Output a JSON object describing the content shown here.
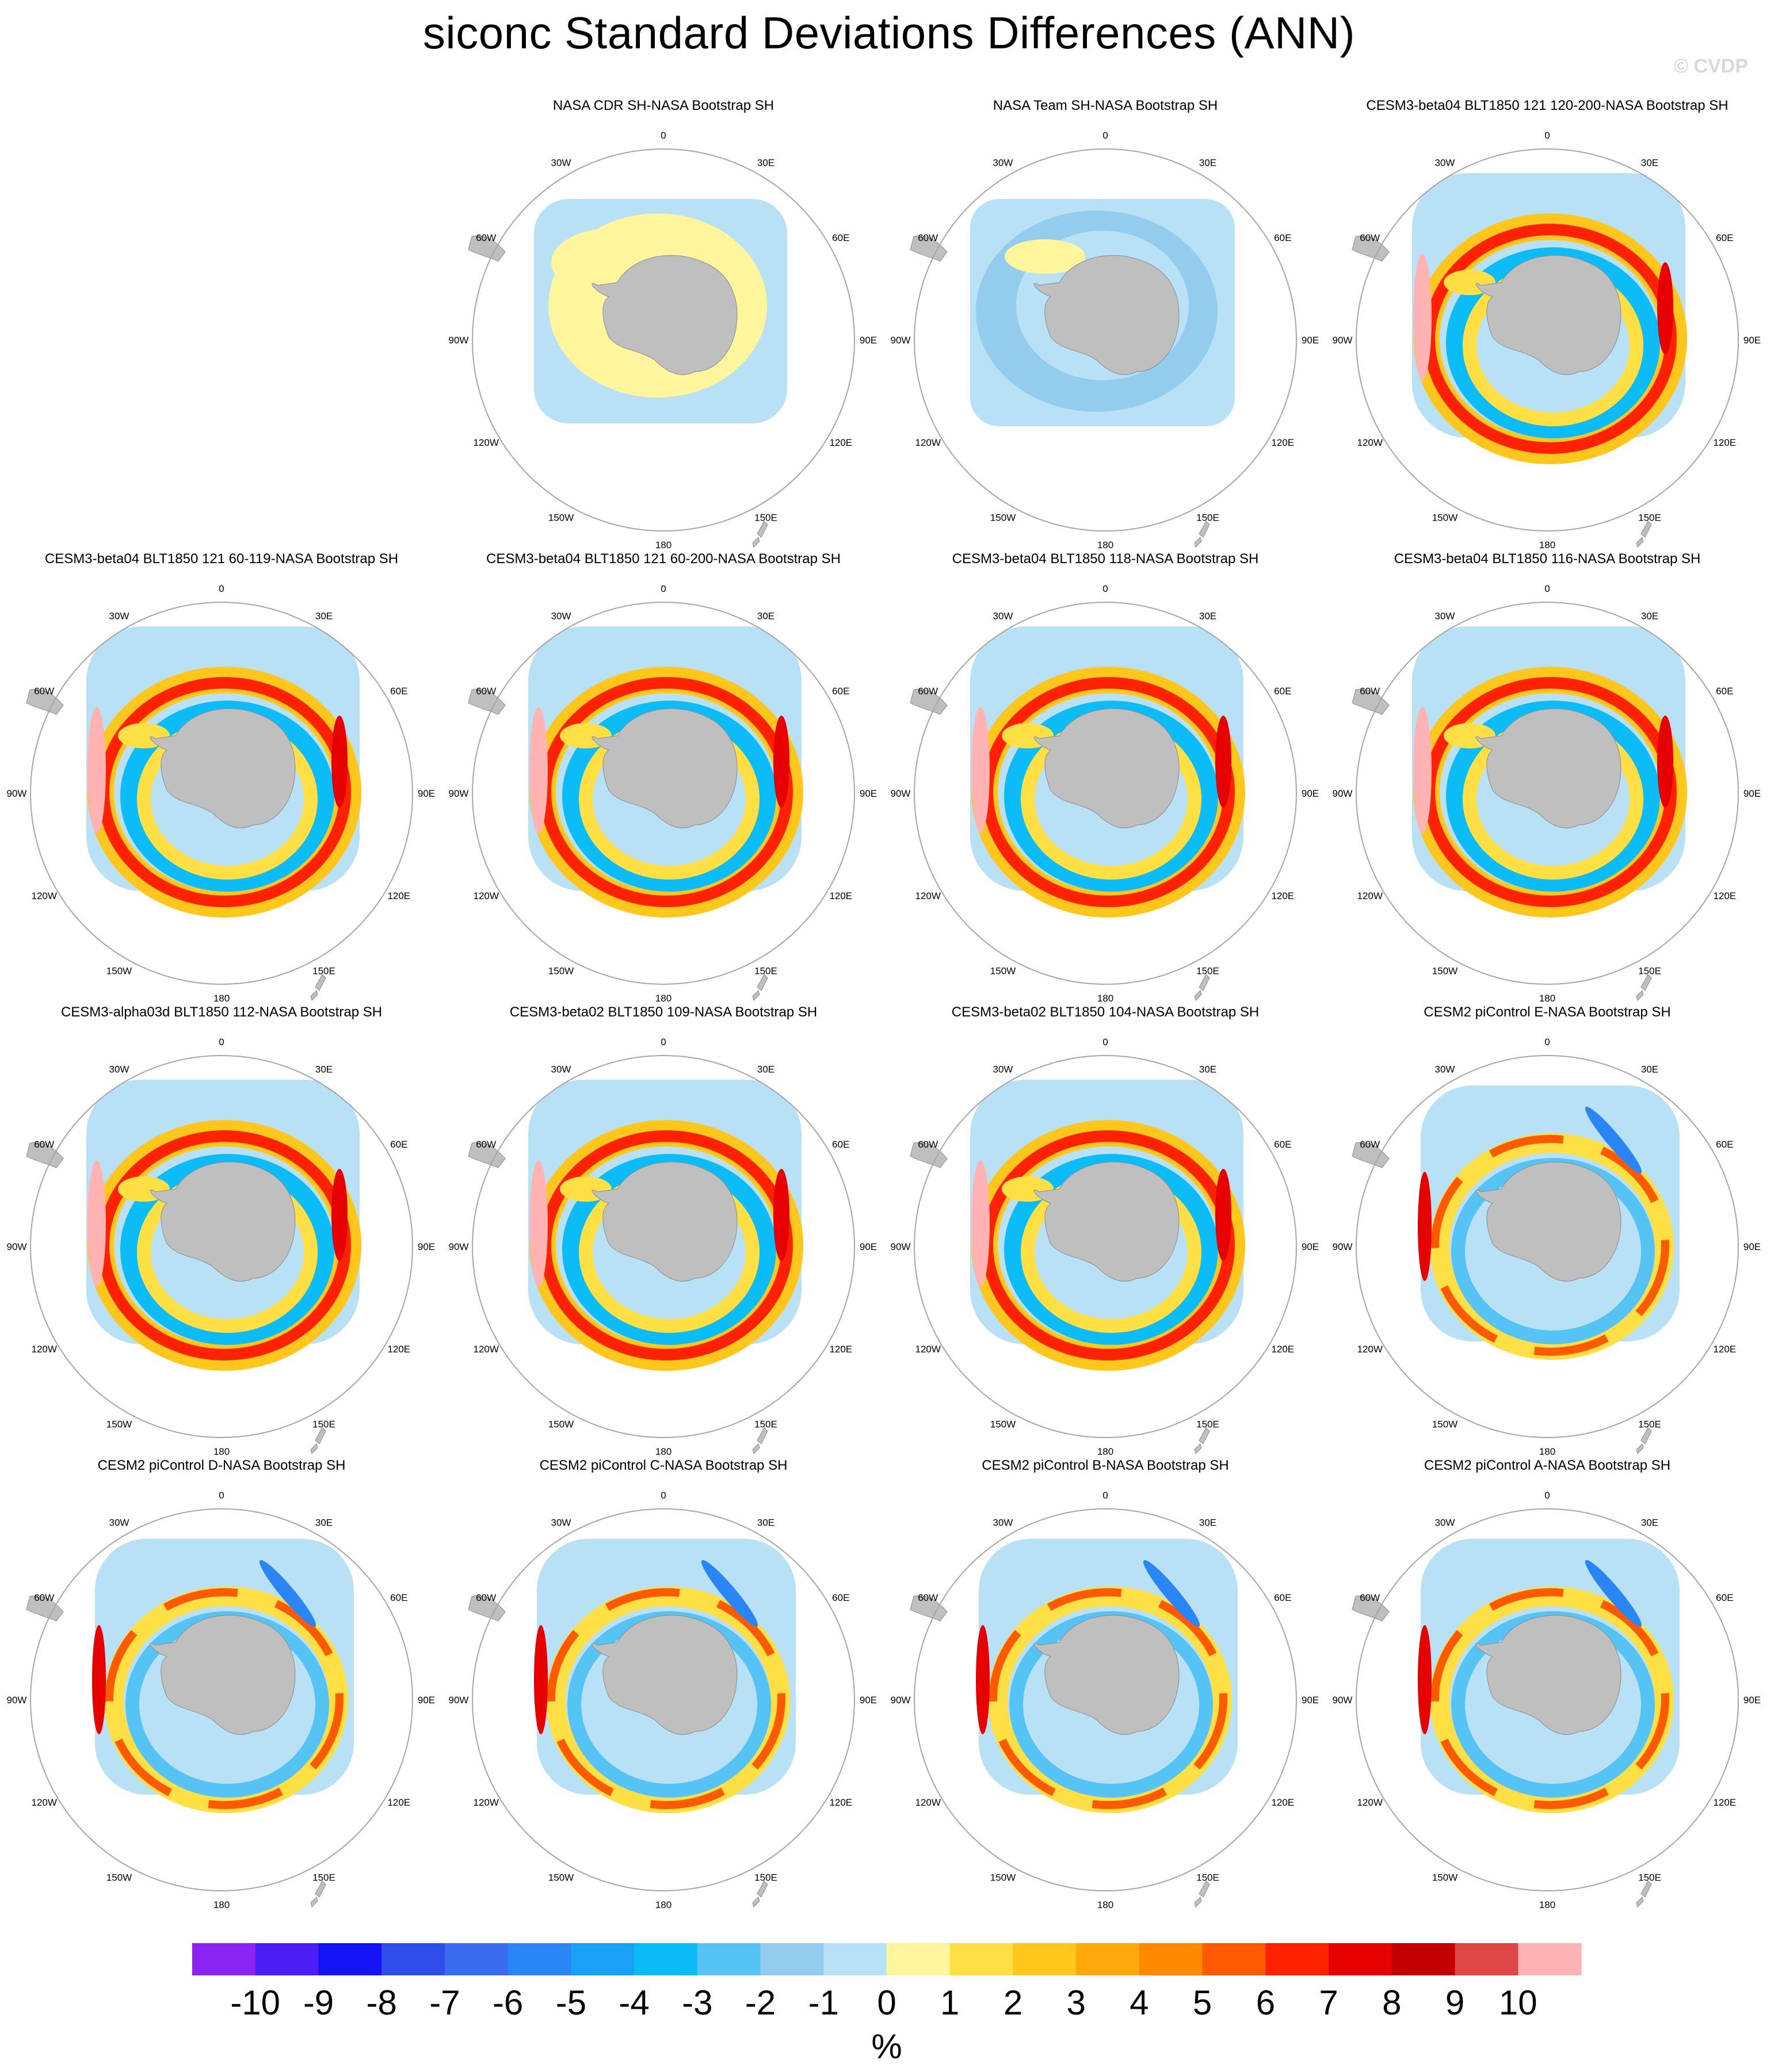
{
  "title": "siconc Standard Deviations Differences (ANN)",
  "watermark": "© CVDP",
  "panels": [
    {
      "title": "NASA CDR SH-NASA Bootstrap SH",
      "row": 0,
      "col": 1,
      "pattern": "cdr"
    },
    {
      "title": "NASA Team SH-NASA Bootstrap SH",
      "row": 0,
      "col": 2,
      "pattern": "team"
    },
    {
      "title": "CESM3-beta04 BLT1850 121 120-200-NASA Bootstrap SH",
      "row": 0,
      "col": 3,
      "pattern": "warm"
    },
    {
      "title": "CESM3-beta04 BLT1850 121 60-119-NASA Bootstrap SH",
      "row": 1,
      "col": 0,
      "pattern": "warm"
    },
    {
      "title": "CESM3-beta04 BLT1850 121 60-200-NASA Bootstrap SH",
      "row": 1,
      "col": 1,
      "pattern": "warm"
    },
    {
      "title": "CESM3-beta04 BLT1850 118-NASA Bootstrap SH",
      "row": 1,
      "col": 2,
      "pattern": "warm"
    },
    {
      "title": "CESM3-beta04 BLT1850 116-NASA Bootstrap SH",
      "row": 1,
      "col": 3,
      "pattern": "warm"
    },
    {
      "title": "CESM3-alpha03d BLT1850 112-NASA Bootstrap SH",
      "row": 2,
      "col": 0,
      "pattern": "warm"
    },
    {
      "title": "CESM3-beta02 BLT1850 109-NASA Bootstrap SH",
      "row": 2,
      "col": 1,
      "pattern": "warm"
    },
    {
      "title": "CESM3-beta02 BLT1850 104-NASA Bootstrap SH",
      "row": 2,
      "col": 2,
      "pattern": "warm"
    },
    {
      "title": "CESM2 piControl E-NASA Bootstrap SH",
      "row": 2,
      "col": 3,
      "pattern": "mixed"
    },
    {
      "title": "CESM2 piControl D-NASA Bootstrap SH",
      "row": 3,
      "col": 0,
      "pattern": "mixed"
    },
    {
      "title": "CESM2 piControl C-NASA Bootstrap SH",
      "row": 3,
      "col": 1,
      "pattern": "mixed"
    },
    {
      "title": "CESM2 piControl B-NASA Bootstrap SH",
      "row": 3,
      "col": 2,
      "pattern": "mixed"
    },
    {
      "title": "CESM2 piControl A-NASA Bootstrap SH",
      "row": 3,
      "col": 3,
      "pattern": "mixed"
    }
  ],
  "map_labels": [
    "0",
    "30E",
    "60E",
    "90E",
    "120E",
    "150E",
    "180",
    "150W",
    "120W",
    "90W",
    "60W",
    "30W"
  ],
  "colorbar": {
    "unit": "%",
    "tick_labels": [
      "-10",
      "-9",
      "-8",
      "-7",
      "-6",
      "-5",
      "-4",
      "-3",
      "-2",
      "-1",
      "0",
      "1",
      "2",
      "3",
      "4",
      "5",
      "6",
      "7",
      "8",
      "9",
      "10"
    ],
    "colors": [
      "#8a24f0",
      "#4a1ef5",
      "#1414f5",
      "#2f4de8",
      "#3a6cf0",
      "#2a86f5",
      "#1aa0f5",
      "#0bbcf7",
      "#55c4f5",
      "#93ccec",
      "#b9e1f6",
      "#fff59c",
      "#ffe044",
      "#ffc71c",
      "#ffa90c",
      "#ff8a00",
      "#ff5a00",
      "#ff2200",
      "#e60000",
      "#c20000",
      "#df4646",
      "#ffb3b3"
    ]
  },
  "colors": {
    "land": "#bfbfbf",
    "circle": "#a6a6a6",
    "background": "#ffffff"
  }
}
